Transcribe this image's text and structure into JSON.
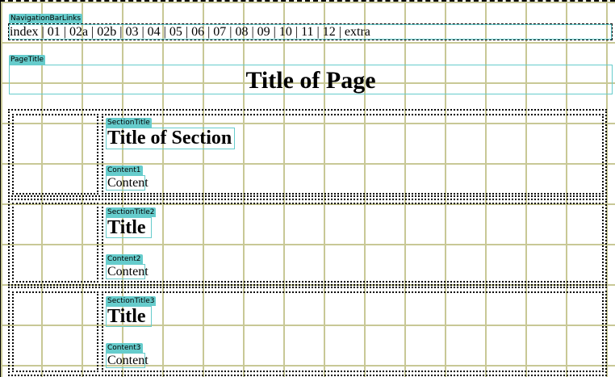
{
  "navigation": {
    "label": "NavigationBarLinks",
    "links": "index | 01 | 02a | 02b | 03 | 04 | 05 | 06 | 07 | 08 | 09 | 10 | 11 | 12 | extra"
  },
  "page_title": {
    "label": "PageTitle",
    "text": "Title of Page"
  },
  "sections": [
    {
      "title_label": "SectionTitle",
      "title": "Title of Section",
      "content_label": "Content1",
      "content": "Content"
    },
    {
      "title_label": "SectionTitle2",
      "title": "Title",
      "content_label": "Content2",
      "content": "Content"
    },
    {
      "title_label": "SectionTitle3",
      "title": "Title",
      "content_label": "Content3",
      "content": "Content"
    }
  ],
  "colors": {
    "region_tag": "#66cccc",
    "grid": "#c8c896"
  }
}
